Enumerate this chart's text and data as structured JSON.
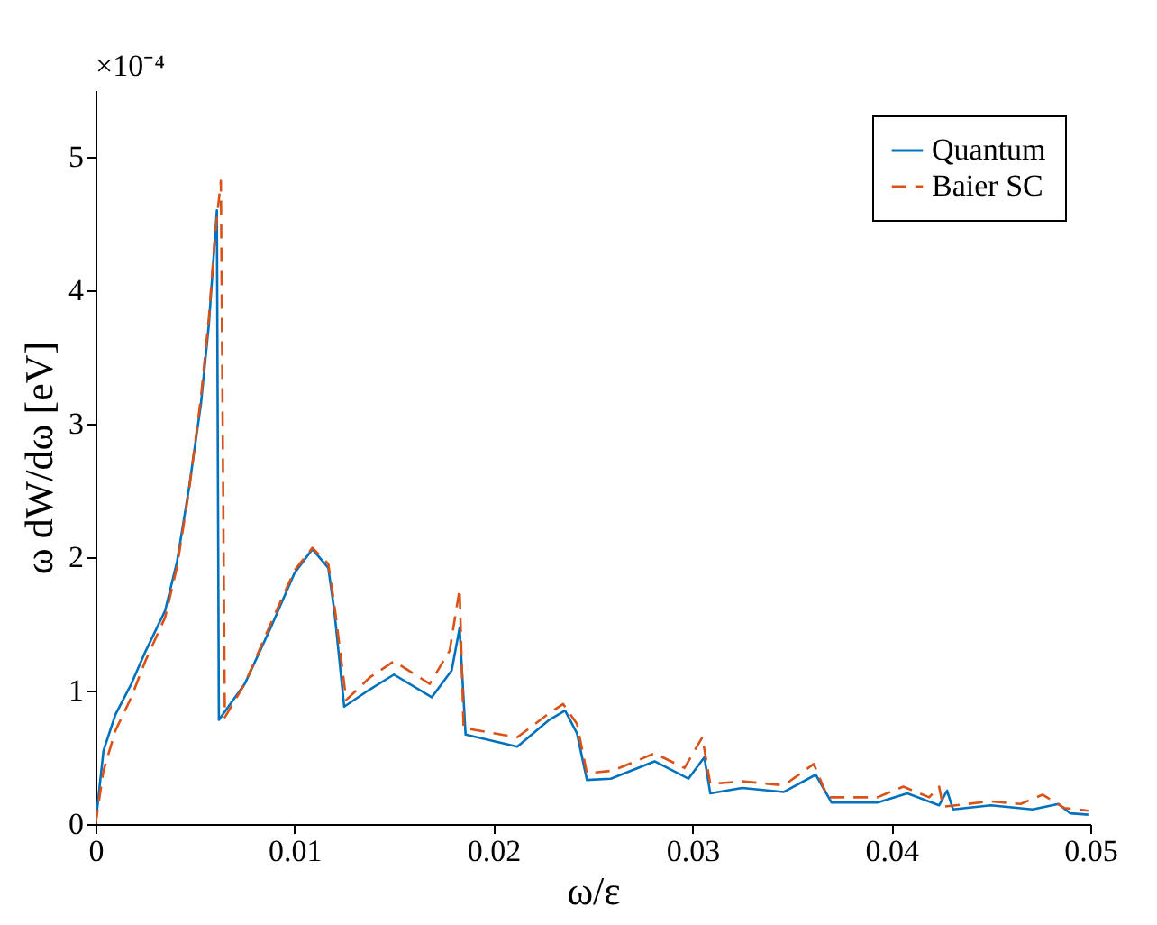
{
  "chart_data": {
    "type": "line",
    "xlabel": "ω/ε",
    "ylabel": "ω dW/dω [eV]",
    "annotations": [
      "×10⁻⁴"
    ],
    "xlim": [
      0,
      0.05
    ],
    "xticks": [
      0,
      0.01,
      0.02,
      0.03,
      0.04,
      0.05
    ],
    "ylim": [
      0,
      5.5
    ],
    "yticks": [
      0,
      1,
      2,
      3,
      4,
      5
    ],
    "grid": false,
    "legend": "top right",
    "marker": "none",
    "series": [
      {
        "name": "Quantum",
        "color": "#0072bd",
        "line_style": "solid",
        "x": [
          0,
          0.0004,
          0.001,
          0.0018,
          0.0025,
          0.0035,
          0.0041,
          0.0047,
          0.0053,
          0.0057,
          0.0061,
          0.0062,
          0.0075,
          0.0088,
          0.01,
          0.0109,
          0.0117,
          0.012,
          0.0125,
          0.0138,
          0.015,
          0.0169,
          0.0179,
          0.0183,
          0.0186,
          0.0212,
          0.0228,
          0.0236,
          0.0242,
          0.0247,
          0.0259,
          0.0281,
          0.0298,
          0.0306,
          0.0309,
          0.0325,
          0.0346,
          0.0362,
          0.037,
          0.0393,
          0.0408,
          0.0424,
          0.0428,
          0.0431,
          0.045,
          0.0471,
          0.0484,
          0.049,
          0.0499
        ],
        "values": [
          0,
          0.55,
          0.82,
          1.05,
          1.29,
          1.6,
          1.97,
          2.52,
          3.15,
          3.75,
          4.6,
          0.78,
          1.05,
          1.47,
          1.88,
          2.06,
          1.92,
          1.6,
          0.88,
          1.01,
          1.12,
          0.95,
          1.15,
          1.47,
          0.67,
          0.58,
          0.78,
          0.85,
          0.68,
          0.33,
          0.34,
          0.47,
          0.34,
          0.5,
          0.23,
          0.27,
          0.24,
          0.37,
          0.16,
          0.16,
          0.23,
          0.14,
          0.25,
          0.11,
          0.14,
          0.11,
          0.15,
          0.08,
          0.07
        ]
      },
      {
        "name": "Baier SC",
        "color": "#d95319",
        "line_style": "dashed",
        "x": [
          0,
          0.0004,
          0.001,
          0.0018,
          0.0025,
          0.0035,
          0.0041,
          0.0047,
          0.0053,
          0.0057,
          0.006,
          0.0063,
          0.0065,
          0.0075,
          0.0088,
          0.01,
          0.0109,
          0.0117,
          0.012,
          0.0126,
          0.0138,
          0.015,
          0.0168,
          0.0178,
          0.0183,
          0.0185,
          0.0212,
          0.0228,
          0.0235,
          0.0242,
          0.0247,
          0.026,
          0.0281,
          0.0296,
          0.0305,
          0.0309,
          0.0325,
          0.0346,
          0.0361,
          0.0368,
          0.0393,
          0.0406,
          0.0419,
          0.0424,
          0.0426,
          0.045,
          0.0465,
          0.0476,
          0.0487,
          0.0499
        ],
        "values": [
          0,
          0.4,
          0.7,
          0.95,
          1.22,
          1.55,
          1.93,
          2.5,
          3.2,
          3.8,
          4.4,
          4.82,
          0.8,
          1.05,
          1.5,
          1.9,
          2.07,
          1.95,
          1.65,
          0.93,
          1.1,
          1.22,
          1.05,
          1.3,
          1.76,
          0.72,
          0.65,
          0.83,
          0.9,
          0.75,
          0.38,
          0.4,
          0.53,
          0.42,
          0.65,
          0.3,
          0.32,
          0.29,
          0.45,
          0.2,
          0.2,
          0.28,
          0.2,
          0.28,
          0.13,
          0.17,
          0.15,
          0.22,
          0.12,
          0.1
        ]
      }
    ]
  }
}
